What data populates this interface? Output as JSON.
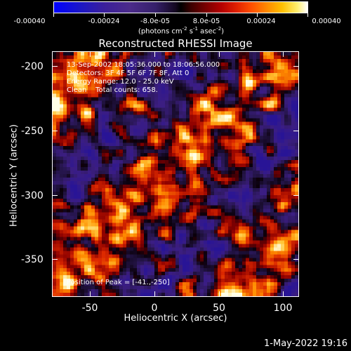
{
  "colorbar": {
    "labels": [
      "-0.00040",
      "-0.00024",
      "-8.0e-05",
      "8.0e-05",
      "0.00024",
      "0.00040"
    ],
    "units_text": "(photons cm",
    "units_sup1": "-2",
    "units_mid": " s",
    "units_sup2": "-1",
    "units_mid2": " asec",
    "units_sup3": "-2",
    "units_end": ")",
    "colors": [
      "#0000ff",
      "#4b2b8a",
      "#000000",
      "#b40000",
      "#ff8a00",
      "#ffffff"
    ]
  },
  "plot": {
    "title": "Reconstructed RHESSI Image",
    "info": [
      "13-Sep-2002 18:05:36.000 to 18:06:56.000",
      "Detectors: 3F 4F 5F 6F 7F 8F, Att 0",
      "Energy Range: 12.0 - 25.0 keV",
      "Clean    Total counts: 658."
    ],
    "peak": "Position of Peak = [-41.,-250]",
    "x_ticks": [
      "-50",
      "0",
      "50",
      "100"
    ],
    "y_ticks": [
      "-200",
      "-250",
      "-300",
      "-350"
    ],
    "x_axis_title": "Heliocentric X (arcsec)",
    "y_axis_title": "Heliocentric Y (arcsec)",
    "x_range": [
      -80,
      112
    ],
    "y_range": [
      -381,
      -190
    ]
  },
  "footer": {
    "timestamp": "1-May-2022 19:16"
  }
}
